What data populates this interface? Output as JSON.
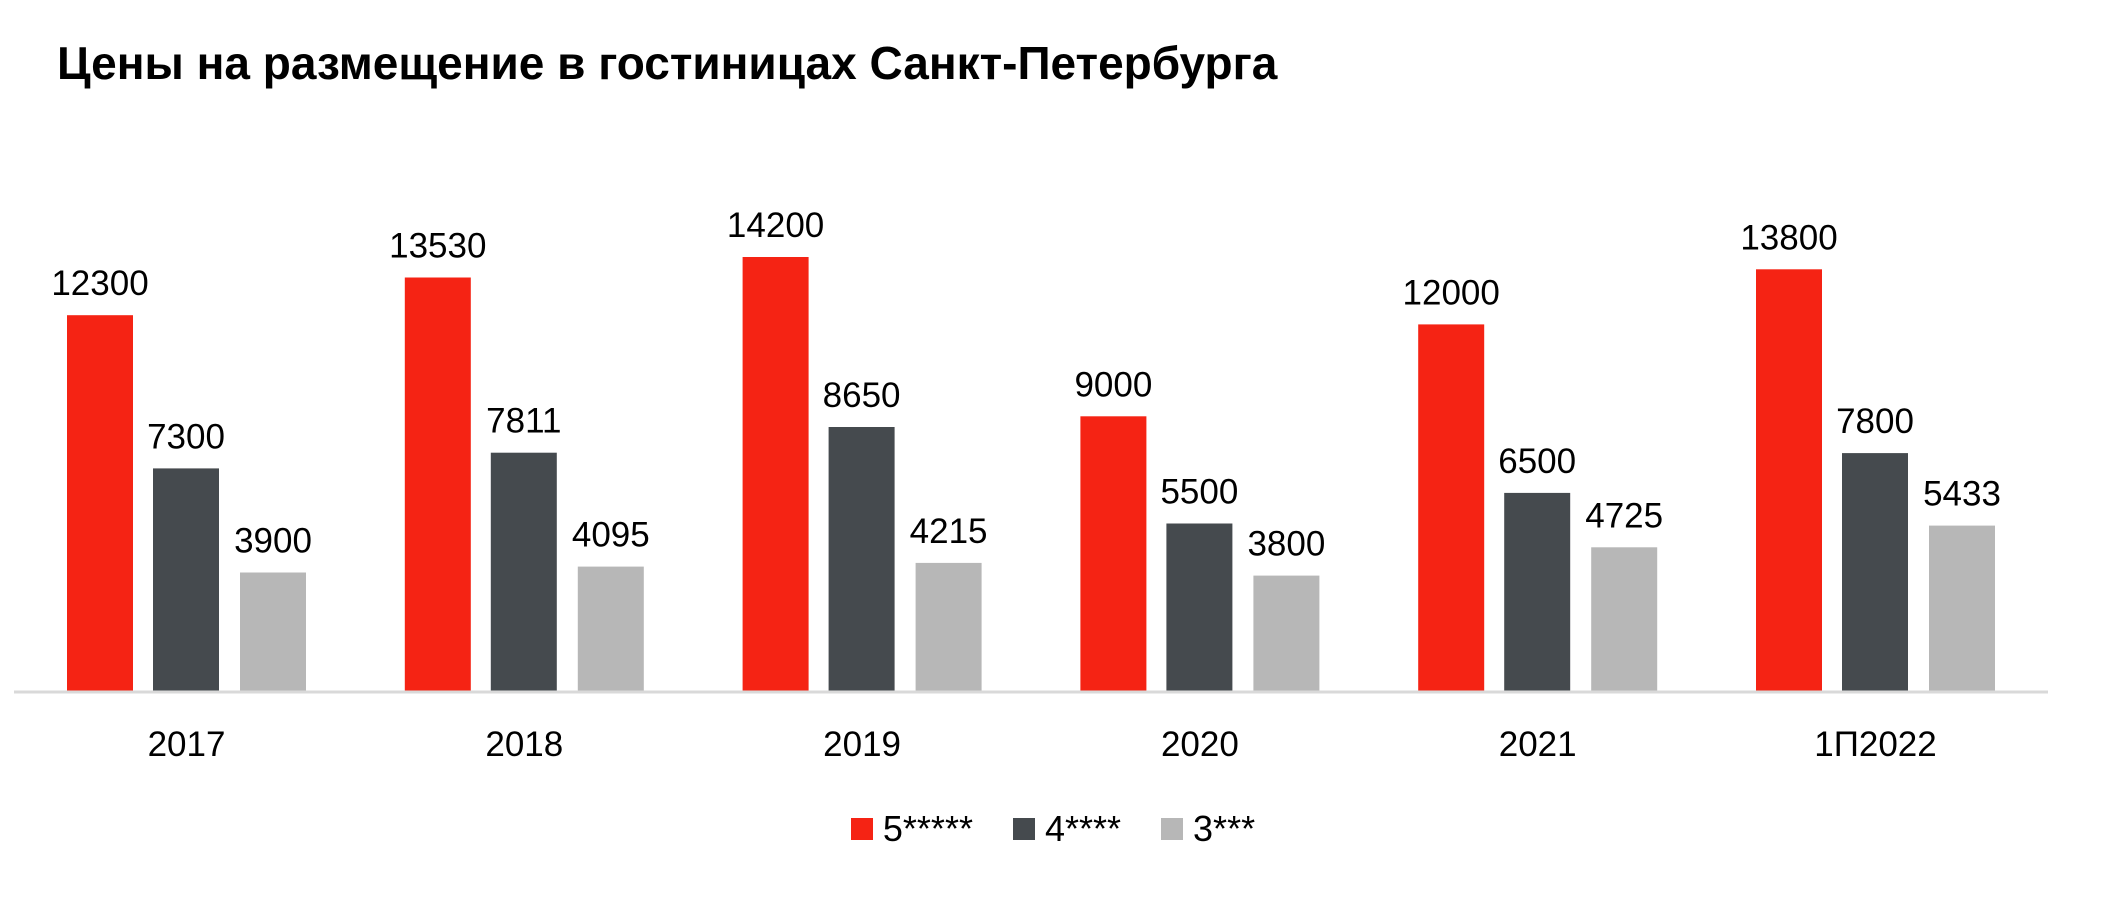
{
  "chart_data": {
    "type": "bar",
    "title": "Цены на размещение в гостиницах Санкт-Петербурга",
    "categories": [
      "2017",
      "2018",
      "2019",
      "2020",
      "2021",
      "1П2022"
    ],
    "series": [
      {
        "name": "5*****",
        "color": "#F52314",
        "values": [
          12300,
          13530,
          14200,
          9000,
          12000,
          13800
        ]
      },
      {
        "name": "4****",
        "color": "#454A4E",
        "values": [
          7300,
          7811,
          8650,
          5500,
          6500,
          7800
        ]
      },
      {
        "name": "3***",
        "color": "#B7B7B7",
        "values": [
          3900,
          4095,
          4215,
          3800,
          4725,
          5433
        ]
      }
    ],
    "xlabel": "",
    "ylabel": "",
    "ylim": [
      0,
      14200
    ],
    "grid": false,
    "legend_position": "bottom"
  }
}
